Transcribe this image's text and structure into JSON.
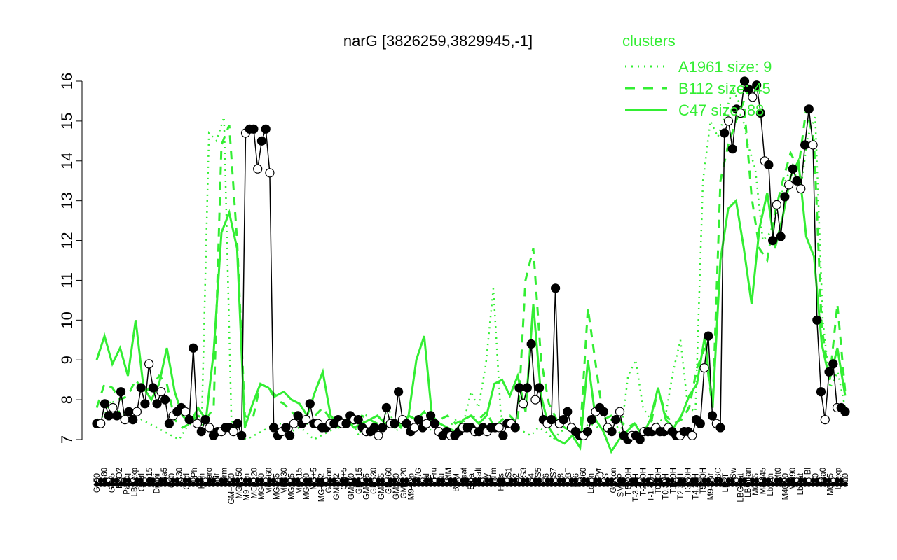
{
  "chart_data": {
    "type": "line",
    "title": "narG [3826259,3829945,-1]",
    "xlabel": "",
    "ylabel": "",
    "ylim": [
      7,
      16
    ],
    "yticks": [
      7,
      8,
      9,
      10,
      11,
      12,
      13,
      14,
      15,
      16
    ],
    "grid": false,
    "legend": {
      "title": "clusters",
      "placement": "top-right",
      "entries": [
        {
          "label": "A1961 size: 9",
          "style": "dotted"
        },
        {
          "label": "B112 size: 45",
          "style": "dashed"
        },
        {
          "label": "C47 size: 88",
          "style": "solid"
        }
      ]
    },
    "x_tick_labels": [
      "G150",
      "G180",
      "G135",
      "H2O2",
      "Paraq",
      "LBGexp",
      "Oxctl",
      "dia15",
      "Diami",
      "dia5",
      "C90",
      "C30",
      "Cold",
      "LPh",
      "HPh",
      "aero",
      "nit",
      "ferm",
      "GM+150",
      "MG+150",
      "M9-tran",
      "MG+120",
      "MG+90",
      "MG+60",
      "MG+45",
      "MG+30",
      "MG+25",
      "MG+15",
      "MG+10",
      "MG+5",
      "MG+0.2",
      "Glucon",
      "GM-0.2",
      "GM+5",
      "GM+10",
      "GM+15",
      "GM+25",
      "GM+30",
      "GM+45",
      "GM+60",
      "GM+90",
      "GM+120",
      "M9-exp",
      "M/G",
      "Mal",
      "Fru",
      "Glu",
      "SMM",
      "BMM",
      "Heat",
      "Etha",
      "Salt",
      "Gly",
      "HiTm",
      "HiOs",
      "S1",
      "S2",
      "S3",
      "S4",
      "S5",
      "S6",
      "S7",
      "S8",
      "BT",
      "B36",
      "B60",
      "LoTm",
      "Pyr",
      "G/S",
      "Glucon",
      "SMMP",
      "T-5.40H",
      "T-3.40H",
      "T-2.40H",
      "T-1.40H",
      "T0.00H",
      "T0.30H",
      "T1.30H",
      "T2.30H",
      "T3.30H",
      "T4.30H",
      "T5.30H",
      "M9-stat",
      "BC",
      "LPhT",
      "Sw",
      "LBGstat",
      "LBGtran",
      "M0t45",
      "M40t45",
      "Lbtran",
      "Mt0",
      "M40t90",
      "M0t90",
      "Lbstat",
      "Bl",
      "S0",
      "dia0",
      "M0t45",
      "Lbexp",
      "Mt0"
    ],
    "series": [
      {
        "name": "",
        "style": "points",
        "values": [
          7.4,
          7.4,
          7.9,
          7.6,
          7.8,
          7.6,
          8.2,
          7.5,
          7.7,
          7.5,
          7.7,
          8.3,
          7.9,
          8.9,
          8.3,
          7.9,
          8.2,
          8.0,
          7.4,
          7.6,
          7.7,
          7.8,
          7.7,
          7.5,
          9.3,
          7.4,
          7.2,
          7.5,
          7.3,
          7.1,
          7.2,
          7.2,
          7.3,
          7.3,
          7.2,
          7.4,
          7.1,
          14.7,
          14.8,
          14.8,
          13.8,
          14.5,
          14.8,
          13.7,
          7.3,
          7.1,
          7.2,
          7.3,
          7.1,
          7.4,
          7.6,
          7.4,
          7.5,
          7.9,
          7.4,
          7.4,
          7.3,
          7.3,
          7.4,
          7.4,
          7.5,
          7.4,
          7.4,
          7.6,
          7.5,
          7.5,
          7.3,
          7.2,
          7.2,
          7.3,
          7.1,
          7.3,
          7.8,
          7.4,
          7.4,
          8.2,
          7.5,
          7.4,
          7.2,
          7.3,
          7.5,
          7.3,
          7.4,
          7.6,
          7.4,
          7.2,
          7.1,
          7.2,
          7.1,
          7.1,
          7.2,
          7.3,
          7.3,
          7.3,
          7.2,
          7.2,
          7.3,
          7.2,
          7.3,
          7.3,
          7.3,
          7.1,
          7.4,
          7.4,
          7.3,
          8.3,
          7.9,
          8.3,
          9.4,
          8.0,
          8.3,
          7.5,
          7.4,
          7.5,
          10.8,
          7.4,
          7.5,
          7.7,
          7.3,
          7.2,
          7.1,
          7.1,
          7.2,
          7.5,
          7.7,
          7.8,
          7.7,
          7.3,
          7.2,
          7.5,
          7.7,
          7.1,
          7.0,
          7.1,
          7.1,
          7.0,
          7.2,
          7.2,
          7.2,
          7.3,
          7.2,
          7.2,
          7.3,
          7.2,
          7.1,
          7.1,
          7.2,
          7.2,
          7.1,
          7.5,
          7.4,
          8.8,
          9.6,
          7.6,
          7.4,
          7.3,
          14.7,
          15.0,
          14.3,
          15.3,
          15.2,
          16.0,
          15.8,
          15.6,
          15.9,
          15.2,
          14.0,
          13.9,
          12.0,
          12.9,
          12.1,
          13.1,
          13.4,
          13.8,
          13.5,
          13.3,
          14.4,
          15.3,
          14.4,
          10.0,
          8.2,
          7.5,
          8.7,
          8.9,
          7.8,
          7.8,
          7.7
        ]
      },
      {
        "name": "A1961 size: 9",
        "style": "dotted",
        "values": [
          7.5,
          7.6,
          8.0,
          7.7,
          7.6,
          7.8,
          7.5,
          7.4,
          7.3,
          7.2,
          7.1,
          7.0,
          7.3,
          7.6,
          7.2,
          14.7,
          14.5,
          15.1,
          7.5,
          7.1,
          7.0,
          7.1,
          7.2,
          7.3,
          7.4,
          7.4,
          7.2,
          7.3,
          7.2,
          7.0,
          7.1,
          7.2,
          7.3,
          7.4,
          7.5,
          7.1,
          7.6,
          7.3,
          7.4,
          7.8,
          7.2,
          7.5,
          7.6,
          7.4,
          7.3,
          7.2,
          7.1,
          7.3,
          7.5,
          7.4,
          8.2,
          7.8,
          8.9,
          10.8,
          7.6,
          7.4,
          7.3,
          7.2,
          7.1,
          7.3,
          7.2,
          7.0,
          7.2,
          7.3,
          7.1,
          7.3,
          7.4,
          7.3,
          7.2,
          7.6,
          7.1,
          8.6,
          9.0,
          7.8,
          7.5,
          7.4,
          7.6,
          8.7,
          9.5,
          7.8,
          7.7,
          13.5,
          15.0,
          14.6,
          15.2,
          15.8,
          15.4,
          14.4,
          13.8,
          12.0,
          12.2,
          12.8,
          13.5,
          13.9,
          13.2,
          14.6,
          15.1,
          10.0,
          8.3,
          8.7,
          7.8
        ]
      },
      {
        "name": "B112 size: 45",
        "style": "dashed",
        "values": [
          7.8,
          8.4,
          8.3,
          8.0,
          8.1,
          8.5,
          8.2,
          8.3,
          8.6,
          8.4,
          7.5,
          7.3,
          7.4,
          7.6,
          7.5,
          7.8,
          14.4,
          14.9,
          12.0,
          7.6,
          7.5,
          8.4,
          8.3,
          8.0,
          7.9,
          7.7,
          7.5,
          7.4,
          7.6,
          7.8,
          7.5,
          7.3,
          7.5,
          7.4,
          7.6,
          7.5,
          7.4,
          7.3,
          7.5,
          7.4,
          7.6,
          7.5,
          7.7,
          7.4,
          7.5,
          7.6,
          7.4,
          7.5,
          7.6,
          7.5,
          7.7,
          7.3,
          7.5,
          7.6,
          7.4,
          11.0,
          11.8,
          9.0,
          7.9,
          7.5,
          7.3,
          7.2,
          7.1,
          10.3,
          8.9,
          7.5,
          7.6,
          7.5,
          7.3,
          7.4,
          7.2,
          7.3,
          8.3,
          7.6,
          7.4,
          7.5,
          7.8,
          8.8,
          9.3,
          7.8,
          13.5,
          14.4,
          15.0,
          15.5,
          13.1,
          11.8,
          11.5,
          12.7,
          13.5,
          14.2,
          13.8,
          15.3,
          14.5,
          9.8,
          8.5,
          10.4,
          8.2
        ]
      },
      {
        "name": "C47 size: 88",
        "style": "solid",
        "values": [
          9.0,
          9.6,
          8.9,
          9.3,
          8.6,
          10.0,
          8.3,
          8.0,
          8.4,
          9.3,
          8.2,
          7.6,
          7.4,
          7.8,
          7.5,
          9.2,
          12.2,
          12.7,
          11.8,
          7.3,
          7.9,
          8.4,
          8.3,
          8.1,
          8.2,
          8.0,
          7.9,
          7.6,
          8.2,
          8.7,
          7.6,
          7.4,
          7.5,
          7.3,
          7.4,
          7.5,
          7.6,
          7.4,
          7.5,
          7.3,
          7.6,
          9.0,
          9.6,
          7.6,
          7.4,
          7.3,
          7.2,
          7.5,
          7.6,
          7.4,
          7.6,
          8.4,
          8.5,
          8.1,
          8.6,
          7.7,
          10.4,
          8.1,
          7.3,
          7.0,
          6.9,
          7.1,
          6.8,
          9.0,
          7.5,
          7.2,
          6.7,
          7.0,
          7.2,
          7.4,
          7.1,
          7.5,
          8.3,
          7.5,
          7.3,
          7.6,
          8.1,
          8.4,
          9.6,
          7.8,
          11.5,
          12.8,
          13.0,
          11.8,
          10.4,
          12.3,
          13.2,
          11.8,
          12.6,
          13.6,
          14.0,
          12.1,
          11.6,
          9.4,
          8.5,
          9.3,
          8.1
        ]
      }
    ]
  },
  "colors": {
    "points": "#000000",
    "cluster_lines": "#33ee33",
    "legend_text": "#33ee33",
    "axis": "#000000"
  }
}
